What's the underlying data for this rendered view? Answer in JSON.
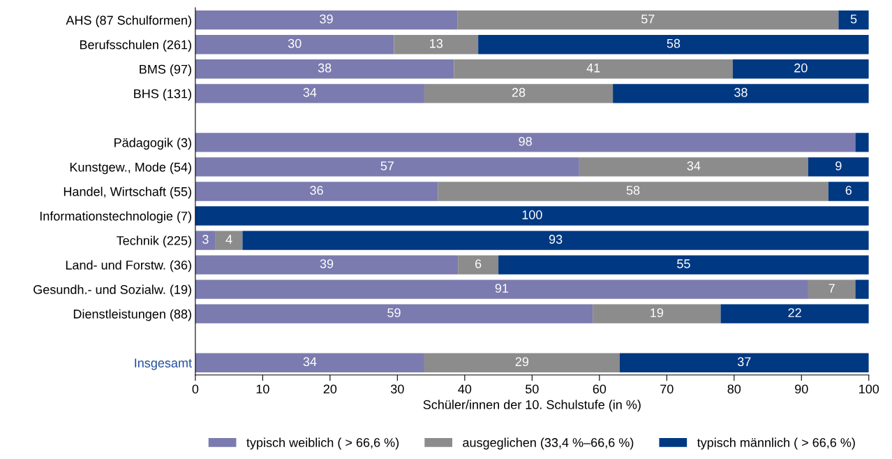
{
  "chart_data": {
    "type": "bar",
    "orientation": "horizontal",
    "stacked": true,
    "categories": [
      "AHS (87 Schulformen)",
      "Berufsschulen (261)",
      "BMS (97)",
      "BHS (131)",
      null,
      "Pädagogik (3)",
      "Kunstgew., Mode (54)",
      "Handel, Wirtschaft (55)",
      "Informationstechnologie (7)",
      "Technik (225)",
      "Land- und Forstw. (36)",
      "Gesundh.- und Sozialw. (19)",
      "Dienstleistungen (88)",
      null,
      "Insgesamt"
    ],
    "series": [
      {
        "name": "typisch weiblich ( > 66,6 %)",
        "color": "#7b7baf",
        "values": [
          38.9,
          29.5,
          38.4,
          34,
          null,
          98,
          57,
          36,
          0,
          3,
          39,
          91,
          59,
          null,
          34
        ],
        "value_labels": [
          "39",
          "30",
          "38",
          "34",
          null,
          "98",
          "57",
          "36",
          null,
          "3",
          "39",
          "91",
          "59",
          null,
          "34"
        ]
      },
      {
        "name": "ausgeglichen (33,4 %–66,6 %)",
        "color": "#8c8c8c",
        "values": [
          56.6,
          12.5,
          41.4,
          28,
          null,
          0,
          34,
          58,
          0,
          4,
          6,
          7,
          19,
          null,
          29
        ],
        "value_labels": [
          "57",
          "13",
          "41",
          "28",
          null,
          null,
          "34",
          "58",
          null,
          "4",
          "6",
          "7",
          "19",
          null,
          "29"
        ]
      },
      {
        "name": "typisch männlich ( > 66,6 %)",
        "color": "#003882",
        "values": [
          4.5,
          58,
          20.2,
          38,
          null,
          2,
          9,
          6,
          100,
          93,
          55,
          2,
          22,
          null,
          37
        ],
        "value_labels": [
          "5",
          "58",
          "20",
          "38",
          null,
          null,
          "9",
          "6",
          "100",
          "93",
          "55",
          null,
          "22",
          null,
          "37"
        ]
      }
    ],
    "xlabel": "Schüler/innen der 10. Schulstufe (in %)",
    "xlim": [
      0,
      100
    ],
    "xticks": [
      0,
      10,
      20,
      30,
      40,
      50,
      60,
      70,
      80,
      90,
      100
    ],
    "grid": false,
    "legend": "bottom"
  }
}
